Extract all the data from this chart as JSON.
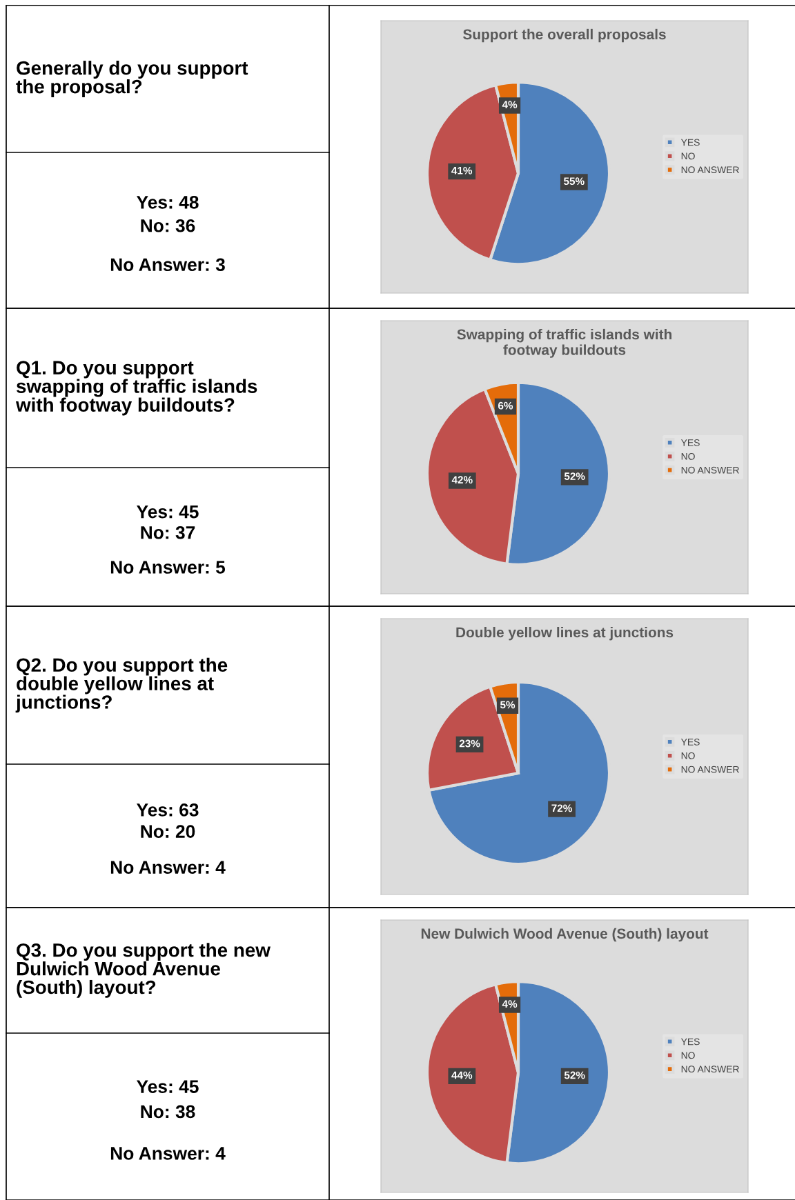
{
  "chart_data": [
    {
      "type": "other",
      "title": "Generally do you support\nthe proposal?",
      "annotations": [
        "Yes: 48",
        "No: 36",
        "No Answer: 3"
      ]
    },
    {
      "type": "pie",
      "title": "Support the overall proposals",
      "categories": [
        "YES",
        "NO",
        "NO ANSWER"
      ],
      "values": [
        55,
        41,
        4
      ],
      "value_labels": [
        "55%",
        "41%",
        "4%"
      ],
      "colors": [
        "#4f81bd",
        "#c0504d",
        "#e46c0a"
      ],
      "legend": "right"
    },
    {
      "type": "other",
      "title": "Q1. Do you support\nswapping of traffic islands\nwith footway buildouts?",
      "annotations": [
        "Yes: 45",
        "No: 37",
        "No Answer: 5"
      ]
    },
    {
      "type": "pie",
      "title": "Swapping of traffic islands with\nfootway buildouts",
      "categories": [
        "YES",
        "NO",
        "NO ANSWER"
      ],
      "values": [
        52,
        42,
        6
      ],
      "value_labels": [
        "52%",
        "42%",
        "6%"
      ],
      "colors": [
        "#4f81bd",
        "#c0504d",
        "#e46c0a"
      ],
      "legend": "right"
    },
    {
      "type": "other",
      "title": "Q2. Do you support the\ndouble yellow lines at\njunctions?",
      "annotations": [
        "Yes: 63",
        "No: 20",
        "No Answer: 4"
      ]
    },
    {
      "type": "pie",
      "title": "Double yellow lines at junctions",
      "categories": [
        "YES",
        "NO",
        "NO ANSWER"
      ],
      "values": [
        72,
        23,
        5
      ],
      "value_labels": [
        "72%",
        "23%",
        "5%"
      ],
      "colors": [
        "#4f81bd",
        "#c0504d",
        "#e46c0a"
      ],
      "legend": "right"
    },
    {
      "type": "other",
      "title": "Q3. Do you support the new\nDulwich Wood Avenue\n(South) layout?",
      "annotations": [
        "Yes: 45",
        "No: 38",
        "No Answer: 4"
      ]
    },
    {
      "type": "pie",
      "title": "New Dulwich Wood Avenue (South) layout",
      "categories": [
        "YES",
        "NO",
        "NO ANSWER"
      ],
      "values": [
        52,
        44,
        4
      ],
      "value_labels": [
        "52%",
        "44%",
        "4%"
      ],
      "colors": [
        "#4f81bd",
        "#c0504d",
        "#e46c0a"
      ],
      "legend": "right"
    }
  ]
}
